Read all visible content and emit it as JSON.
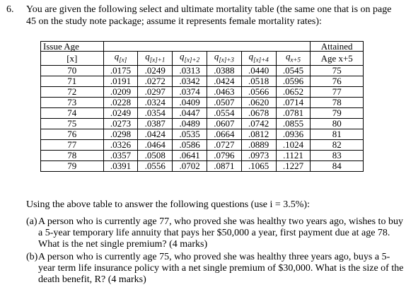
{
  "question_number": "6.",
  "intro": "You are given the following select and ultimate mortality table (the same one that is on page 45 on the study note package; assume it represents female mortality rates):",
  "table": {
    "issue_age_header": "Issue Age",
    "issue_age_var": "[x]",
    "q_headers": [
      {
        "base": "q",
        "sub": "[x]"
      },
      {
        "base": "q",
        "sub": "[x]+1"
      },
      {
        "base": "q",
        "sub": "[x]+2"
      },
      {
        "base": "q",
        "sub": "[x]+3"
      },
      {
        "base": "q",
        "sub": "[x]+4"
      },
      {
        "base": "q",
        "sub": "x+5"
      }
    ],
    "attained_header_1": "Attained",
    "attained_header_2": "Age x+5",
    "rows": [
      [
        "70",
        ".0175",
        ".0249",
        ".0313",
        ".0388",
        ".0440",
        ".0545",
        "75"
      ],
      [
        "71",
        ".0191",
        ".0272",
        ".0342",
        ".0424",
        ".0518",
        ".0596",
        "76"
      ],
      [
        "72",
        ".0209",
        ".0297",
        ".0374",
        ".0463",
        ".0566",
        ".0652",
        "77"
      ],
      [
        "73",
        ".0228",
        ".0324",
        ".0409",
        ".0507",
        ".0620",
        ".0714",
        "78"
      ],
      [
        "74",
        ".0249",
        ".0354",
        ".0447",
        ".0554",
        ".0678",
        ".0781",
        "79"
      ],
      [
        "75",
        ".0273",
        ".0387",
        ".0489",
        ".0607",
        ".0742",
        ".0855",
        "80"
      ],
      [
        "76",
        ".0298",
        ".0424",
        ".0535",
        ".0664",
        ".0812",
        ".0936",
        "81"
      ],
      [
        "77",
        ".0326",
        ".0464",
        ".0586",
        ".0727",
        ".0889",
        ".1024",
        "82"
      ],
      [
        "78",
        ".0357",
        ".0508",
        ".0641",
        ".0796",
        ".0973",
        ".1121",
        "83"
      ],
      [
        "79",
        ".0391",
        ".0556",
        ".0702",
        ".0871",
        ".1065",
        ".1227",
        "84"
      ]
    ]
  },
  "using_text": "Using the above table to answer the following questions (use i = 3.5%):",
  "parts": [
    {
      "label": "(a)",
      "text": "A person who is currently age 77, who proved she was healthy two years ago, wishes to buy a 5-year temporary life annuity that pays her $50,000 a year, first payment due at age 78. What is the net single premium? (4 marks)"
    },
    {
      "label": "(b)",
      "text": "A person who is currently age 75, who proved she was healthy three years ago, buys a 5-year term life insurance policy with a net single premium of $30,000. What is the size of the death benefit, R? (4 marks)"
    }
  ]
}
